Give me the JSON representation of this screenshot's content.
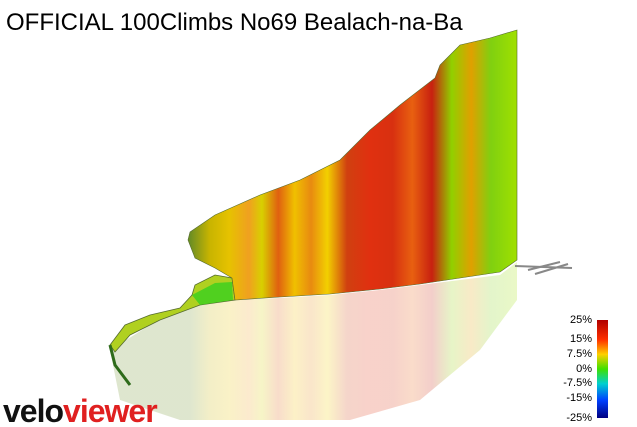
{
  "title": "OFFICIAL 100Climbs No69 Bealach-na-Ba",
  "logo": {
    "velo": "velo",
    "viewer": "viewer"
  },
  "legend": {
    "labels": [
      "25%",
      "15%",
      "7.5%",
      "0%",
      "-7.5%",
      "-15%",
      "-25%"
    ]
  }
}
